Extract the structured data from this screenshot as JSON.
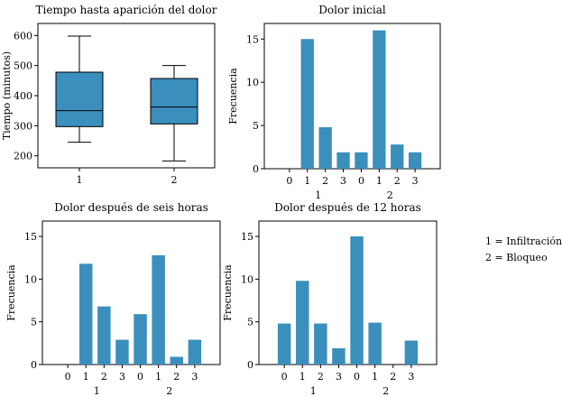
{
  "colors": {
    "bar": "#3a8fbd",
    "axis": "#000000",
    "background": "#ffffff"
  },
  "legend": {
    "line1": "1 = Infiltración",
    "line2": "2 = Bloqueo"
  },
  "chart_data": [
    {
      "type": "box",
      "title": "Tiempo hasta aparición del dolor",
      "xlabel": "",
      "ylabel": "Tiempo (minutos)",
      "categories": [
        "1",
        "2"
      ],
      "boxes": [
        {
          "whisker_low": 245,
          "q1": 297,
          "median": 350,
          "q3": 478,
          "whisker_high": 598
        },
        {
          "whisker_low": 183,
          "q1": 306,
          "median": 362,
          "q3": 457,
          "whisker_high": 500
        }
      ],
      "yticks": [
        200,
        300,
        400,
        500,
        600
      ],
      "ylim": [
        160,
        640
      ]
    },
    {
      "type": "bar",
      "title": "Dolor inicial",
      "ylabel": "Frecuencia",
      "categories": [
        "0",
        "1",
        "2",
        "3",
        "0",
        "1",
        "2",
        "3"
      ],
      "groups": [
        "1",
        "2"
      ],
      "values": [
        0,
        15,
        4.8,
        1.9,
        1.9,
        16,
        2.8,
        1.9
      ],
      "yticks": [
        0,
        5,
        10,
        15
      ],
      "ylim": [
        0,
        16.8
      ]
    },
    {
      "type": "bar",
      "title": "Dolor después de seis horas",
      "ylabel": "Frecuencia",
      "categories": [
        "0",
        "1",
        "2",
        "3",
        "0",
        "1",
        "2",
        "3"
      ],
      "groups": [
        "1",
        "2"
      ],
      "values": [
        0,
        11.8,
        6.8,
        2.9,
        5.9,
        12.8,
        0.9,
        2.9
      ],
      "yticks": [
        0,
        5,
        10,
        15
      ],
      "ylim": [
        0,
        16.8
      ]
    },
    {
      "type": "bar",
      "title": "Dolor después de 12 horas",
      "ylabel": "Frecuencia",
      "categories": [
        "0",
        "1",
        "2",
        "3",
        "0",
        "1",
        "2",
        "3"
      ],
      "groups": [
        "1",
        "2"
      ],
      "values": [
        4.8,
        9.8,
        4.8,
        1.9,
        15,
        4.9,
        0,
        2.8
      ],
      "yticks": [
        0,
        5,
        10,
        15
      ],
      "ylim": [
        0,
        16.8
      ]
    }
  ]
}
